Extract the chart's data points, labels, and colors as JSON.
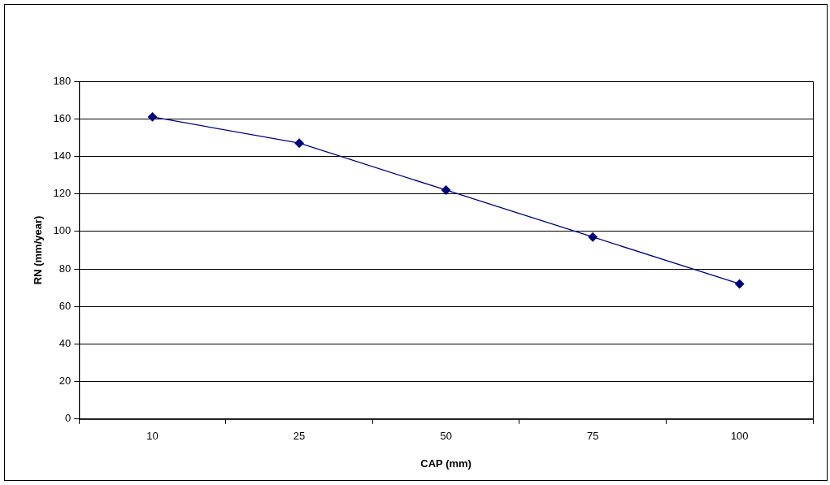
{
  "chart_data": {
    "type": "line",
    "xlabel": "CAP (mm)",
    "ylabel": "RN (mm/year)",
    "categories": [
      "10",
      "25",
      "50",
      "75",
      "100"
    ],
    "series": [
      {
        "color": "#000080",
        "values": [
          161,
          147,
          122,
          97,
          72
        ]
      }
    ],
    "ylim": [
      0,
      180
    ],
    "yticks": [
      0,
      20,
      40,
      60,
      80,
      100,
      120,
      140,
      160,
      180
    ],
    "grid": "y",
    "legend": false,
    "marker": "diamond",
    "line_style": "solid"
  }
}
